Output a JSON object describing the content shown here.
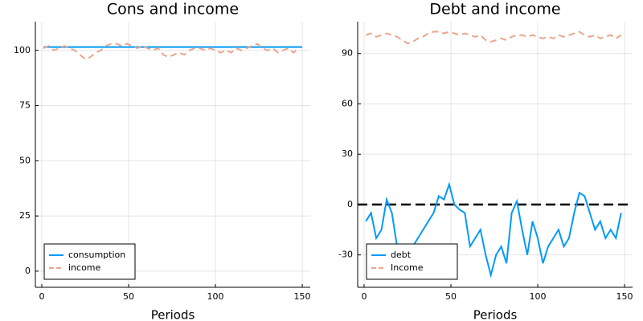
{
  "chart_data": [
    {
      "type": "line",
      "title": "Cons and income",
      "xlabel": "Periods",
      "xlim": [
        -3.7,
        154.6
      ],
      "xticks": [
        0,
        50,
        100,
        150
      ],
      "ylim": [
        -7.3,
        113
      ],
      "yticks": [
        0,
        25,
        50,
        75,
        100
      ],
      "grid": true,
      "legend": "bottom-left",
      "series": [
        {
          "name": "consumption",
          "color": "#009afa",
          "dash": false,
          "x": [
            1,
            150
          ],
          "values": [
            101.5,
            101.5
          ]
        },
        {
          "name": "income",
          "color": "#e9a68c",
          "dash": true,
          "x": [
            1,
            4,
            7,
            10,
            13,
            16,
            19,
            22,
            25,
            28,
            31,
            34,
            37,
            40,
            43,
            46,
            49,
            52,
            55,
            58,
            61,
            64,
            67,
            70,
            73,
            76,
            79,
            82,
            85,
            88,
            91,
            94,
            97,
            100,
            103,
            106,
            109,
            112,
            115,
            118,
            121,
            124,
            127,
            130,
            133,
            136,
            139,
            142,
            145,
            148
          ],
          "values": [
            101,
            102,
            100,
            101,
            102,
            101,
            100,
            98,
            96,
            97,
            99,
            100,
            102,
            103,
            103,
            102,
            103,
            102,
            101,
            102,
            101,
            100,
            101,
            98,
            97,
            98,
            99,
            98,
            100,
            101,
            101,
            100,
            101,
            100,
            99,
            100,
            99,
            101,
            100,
            101,
            102,
            103,
            101,
            100,
            101,
            99,
            100,
            101,
            99,
            101
          ]
        }
      ]
    },
    {
      "type": "line",
      "title": "Debt and income",
      "xlabel": "Periods",
      "xlim": [
        -3.7,
        154.6
      ],
      "xticks": [
        0,
        50,
        100,
        150
      ],
      "ylim": [
        -49.3,
        109
      ],
      "yticks": [
        -30,
        0,
        30,
        60,
        90
      ],
      "grid": true,
      "legend": "bottom-left",
      "hlines": [
        0
      ],
      "hline_color": "#000000",
      "series": [
        {
          "name": "debt",
          "color": "#009afa",
          "dash": false,
          "x": [
            1,
            4,
            7,
            10,
            13,
            16,
            19,
            22,
            25,
            28,
            31,
            34,
            37,
            40,
            43,
            46,
            49,
            52,
            55,
            58,
            61,
            64,
            67,
            70,
            73,
            76,
            79,
            82,
            85,
            88,
            91,
            94,
            97,
            100,
            103,
            106,
            109,
            112,
            115,
            118,
            121,
            124,
            127,
            130,
            133,
            136,
            139,
            142,
            145,
            148
          ],
          "values": [
            -10,
            -5,
            -20,
            -15,
            3,
            -5,
            -25,
            -40,
            -38,
            -25,
            -20,
            -15,
            -10,
            -5,
            5,
            3,
            12,
            0,
            -3,
            -5,
            -25,
            -20,
            -15,
            -30,
            -42,
            -30,
            -25,
            -35,
            -5,
            2,
            -15,
            -30,
            -10,
            -20,
            -35,
            -25,
            -20,
            -15,
            -25,
            -20,
            -5,
            7,
            5,
            -5,
            -15,
            -10,
            -20,
            -15,
            -20,
            -5
          ]
        },
        {
          "name": "Income",
          "color": "#e9a68c",
          "dash": true,
          "x": [
            1,
            4,
            7,
            10,
            13,
            16,
            19,
            22,
            25,
            28,
            31,
            34,
            37,
            40,
            43,
            46,
            49,
            52,
            55,
            58,
            61,
            64,
            67,
            70,
            73,
            76,
            79,
            82,
            85,
            88,
            91,
            94,
            97,
            100,
            103,
            106,
            109,
            112,
            115,
            118,
            121,
            124,
            127,
            130,
            133,
            136,
            139,
            142,
            145,
            148
          ],
          "values": [
            101,
            102,
            100,
            101,
            102,
            101,
            100,
            98,
            96,
            97,
            99,
            100,
            102,
            103,
            103,
            102,
            103,
            102,
            101,
            102,
            101,
            100,
            101,
            98,
            97,
            98,
            99,
            98,
            100,
            101,
            101,
            100,
            101,
            100,
            99,
            100,
            99,
            101,
            100,
            101,
            102,
            103,
            101,
            100,
            101,
            99,
            100,
            101,
            99,
            101
          ]
        }
      ]
    }
  ]
}
